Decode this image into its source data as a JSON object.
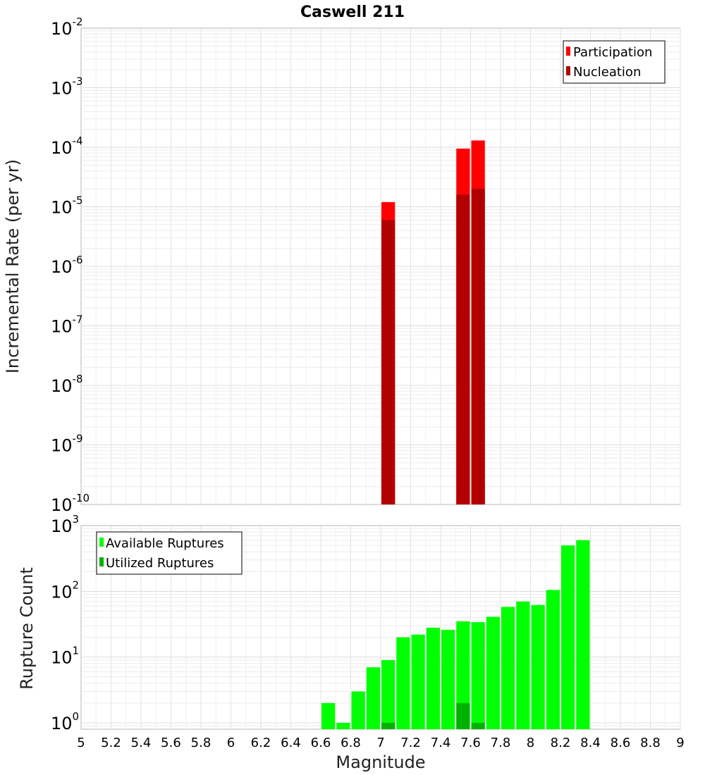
{
  "chart_data": [
    {
      "type": "bar",
      "title": "Caswell 211",
      "xlabel": "",
      "ylabel": "Incremental Rate (per yr)",
      "yscale": "log",
      "ylim": [
        1e-10,
        0.01
      ],
      "xlim": [
        5,
        9
      ],
      "bin_width": 0.1,
      "ytick_labels": [
        {
          "base": "10",
          "exp": "-10"
        },
        {
          "base": "10",
          "exp": "-9"
        },
        {
          "base": "10",
          "exp": "-8"
        },
        {
          "base": "10",
          "exp": "-7"
        },
        {
          "base": "10",
          "exp": "-6"
        },
        {
          "base": "10",
          "exp": "-5"
        },
        {
          "base": "10",
          "exp": "-4"
        },
        {
          "base": "10",
          "exp": "-3"
        },
        {
          "base": "10",
          "exp": "-2"
        }
      ],
      "legend_position": "top-right",
      "series": [
        {
          "name": "Participation",
          "color": "#ff0000",
          "x": [
            7.05,
            7.55,
            7.65
          ],
          "values": [
            1.2e-05,
            9.5e-05,
            0.00013
          ]
        },
        {
          "name": "Nucleation",
          "color": "#b20000",
          "x": [
            7.05,
            7.55,
            7.65
          ],
          "values": [
            6e-06,
            1.6e-05,
            2e-05
          ]
        }
      ]
    },
    {
      "type": "bar",
      "title": "",
      "xlabel": "Magnitude",
      "ylabel": "Rupture Count",
      "yscale": "log",
      "ylim": [
        0.8,
        1000
      ],
      "xlim": [
        5,
        9
      ],
      "bin_width": 0.1,
      "ytick_labels": [
        {
          "base": "10",
          "exp": "0"
        },
        {
          "base": "10",
          "exp": "1"
        },
        {
          "base": "10",
          "exp": "2"
        },
        {
          "base": "10",
          "exp": "3"
        }
      ],
      "xtick_labels": [
        "5",
        "5.2",
        "5.4",
        "5.6",
        "5.8",
        "6",
        "6.2",
        "6.4",
        "6.6",
        "6.8",
        "7",
        "7.2",
        "7.4",
        "7.6",
        "7.8",
        "8",
        "8.2",
        "8.4",
        "8.6",
        "8.8",
        "9"
      ],
      "legend_position": "top-left",
      "series": [
        {
          "name": "Available Ruptures",
          "color": "#00ff00",
          "x": [
            6.65,
            6.75,
            6.85,
            6.95,
            7.05,
            7.15,
            7.25,
            7.35,
            7.45,
            7.55,
            7.65,
            7.75,
            7.85,
            7.95,
            8.05,
            8.15,
            8.25,
            8.35
          ],
          "values": [
            2,
            1,
            3,
            7,
            9,
            20,
            22,
            28,
            26,
            35,
            34,
            41,
            58,
            70,
            62,
            105,
            500,
            600
          ]
        },
        {
          "name": "Utilized Ruptures",
          "color": "#00b200",
          "x": [
            7.05,
            7.55,
            7.65
          ],
          "values": [
            1,
            2,
            1
          ]
        }
      ]
    }
  ]
}
